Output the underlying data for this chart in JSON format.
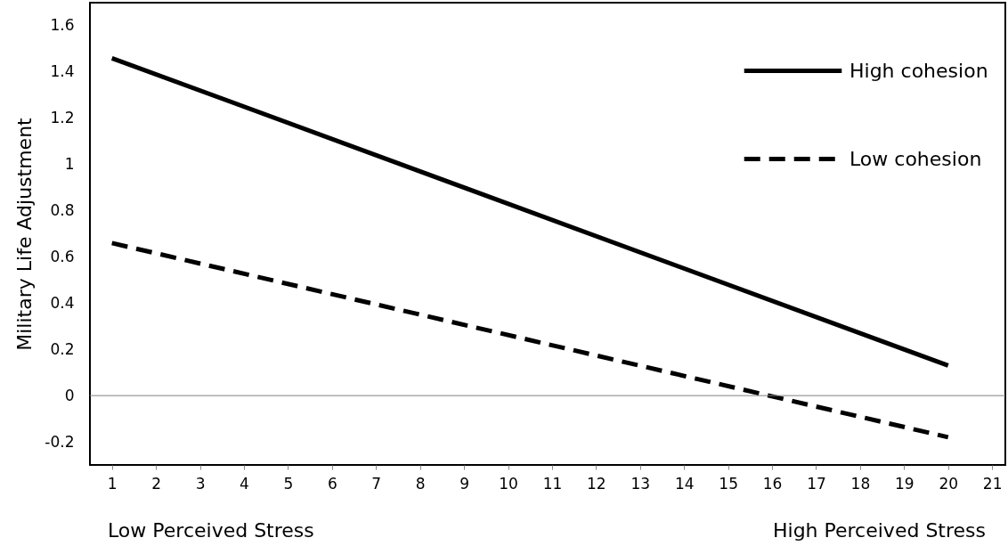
{
  "chart_data": {
    "type": "line",
    "ylabel": "Military Life Adjustment",
    "x": [
      1,
      20
    ],
    "series": [
      {
        "name": "High cohesion",
        "color": "#000000",
        "line_style": "solid",
        "values": [
          1.46,
          0.13
        ]
      },
      {
        "name": "Low cohesion",
        "color": "#000000",
        "line_style": "dashed",
        "values": [
          0.66,
          -0.18
        ]
      }
    ],
    "xlim": [
      0.5,
      21.3
    ],
    "xticks": [
      1,
      2,
      3,
      4,
      5,
      6,
      7,
      8,
      9,
      10,
      11,
      12,
      13,
      14,
      15,
      16,
      17,
      18,
      19,
      20,
      21
    ],
    "ylim": [
      -0.3,
      1.7
    ],
    "yticks": [
      -0.2,
      0,
      0.2,
      0.4,
      0.6,
      0.8,
      1,
      1.2,
      1.4,
      1.6
    ],
    "ref_lines": [
      {
        "axis": "y",
        "value": 0,
        "color": "#808080"
      }
    ],
    "annotations": [
      "Low Perceived Stress",
      "High Perceived Stress"
    ],
    "legend": "top right",
    "grid": false,
    "marker": "none"
  }
}
